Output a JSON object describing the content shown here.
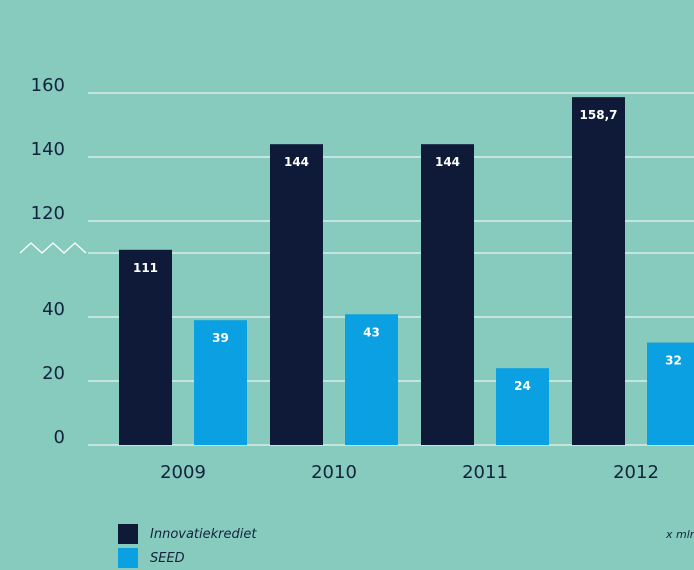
{
  "colors": {
    "background": "#87cbbe",
    "innovatiekrediet": "#0e1a38",
    "seed": "#0aa0e2",
    "gridline": "#ffffff",
    "text": "#13233d"
  },
  "chart_data": {
    "type": "bar",
    "categories": [
      "2009",
      "2010",
      "2011",
      "2012"
    ],
    "series": [
      {
        "name": "Innovatiekrediet",
        "values": [
          111,
          144,
          144,
          158.7
        ],
        "labels": [
          "111",
          "144",
          "144",
          "158,7"
        ],
        "color": "#0e1a38"
      },
      {
        "name": "SEED",
        "values": [
          39,
          43,
          24,
          32
        ],
        "labels": [
          "39",
          "43",
          "24",
          "32"
        ],
        "color": "#0aa0e2"
      }
    ],
    "yticks": [
      "0",
      "20",
      "40",
      "120",
      "140",
      "160"
    ],
    "axis_break": "between 40 and 120",
    "ylim": [
      0,
      160
    ],
    "grid": true,
    "legend_position": "bottom-left",
    "unit_label": "x mln"
  }
}
